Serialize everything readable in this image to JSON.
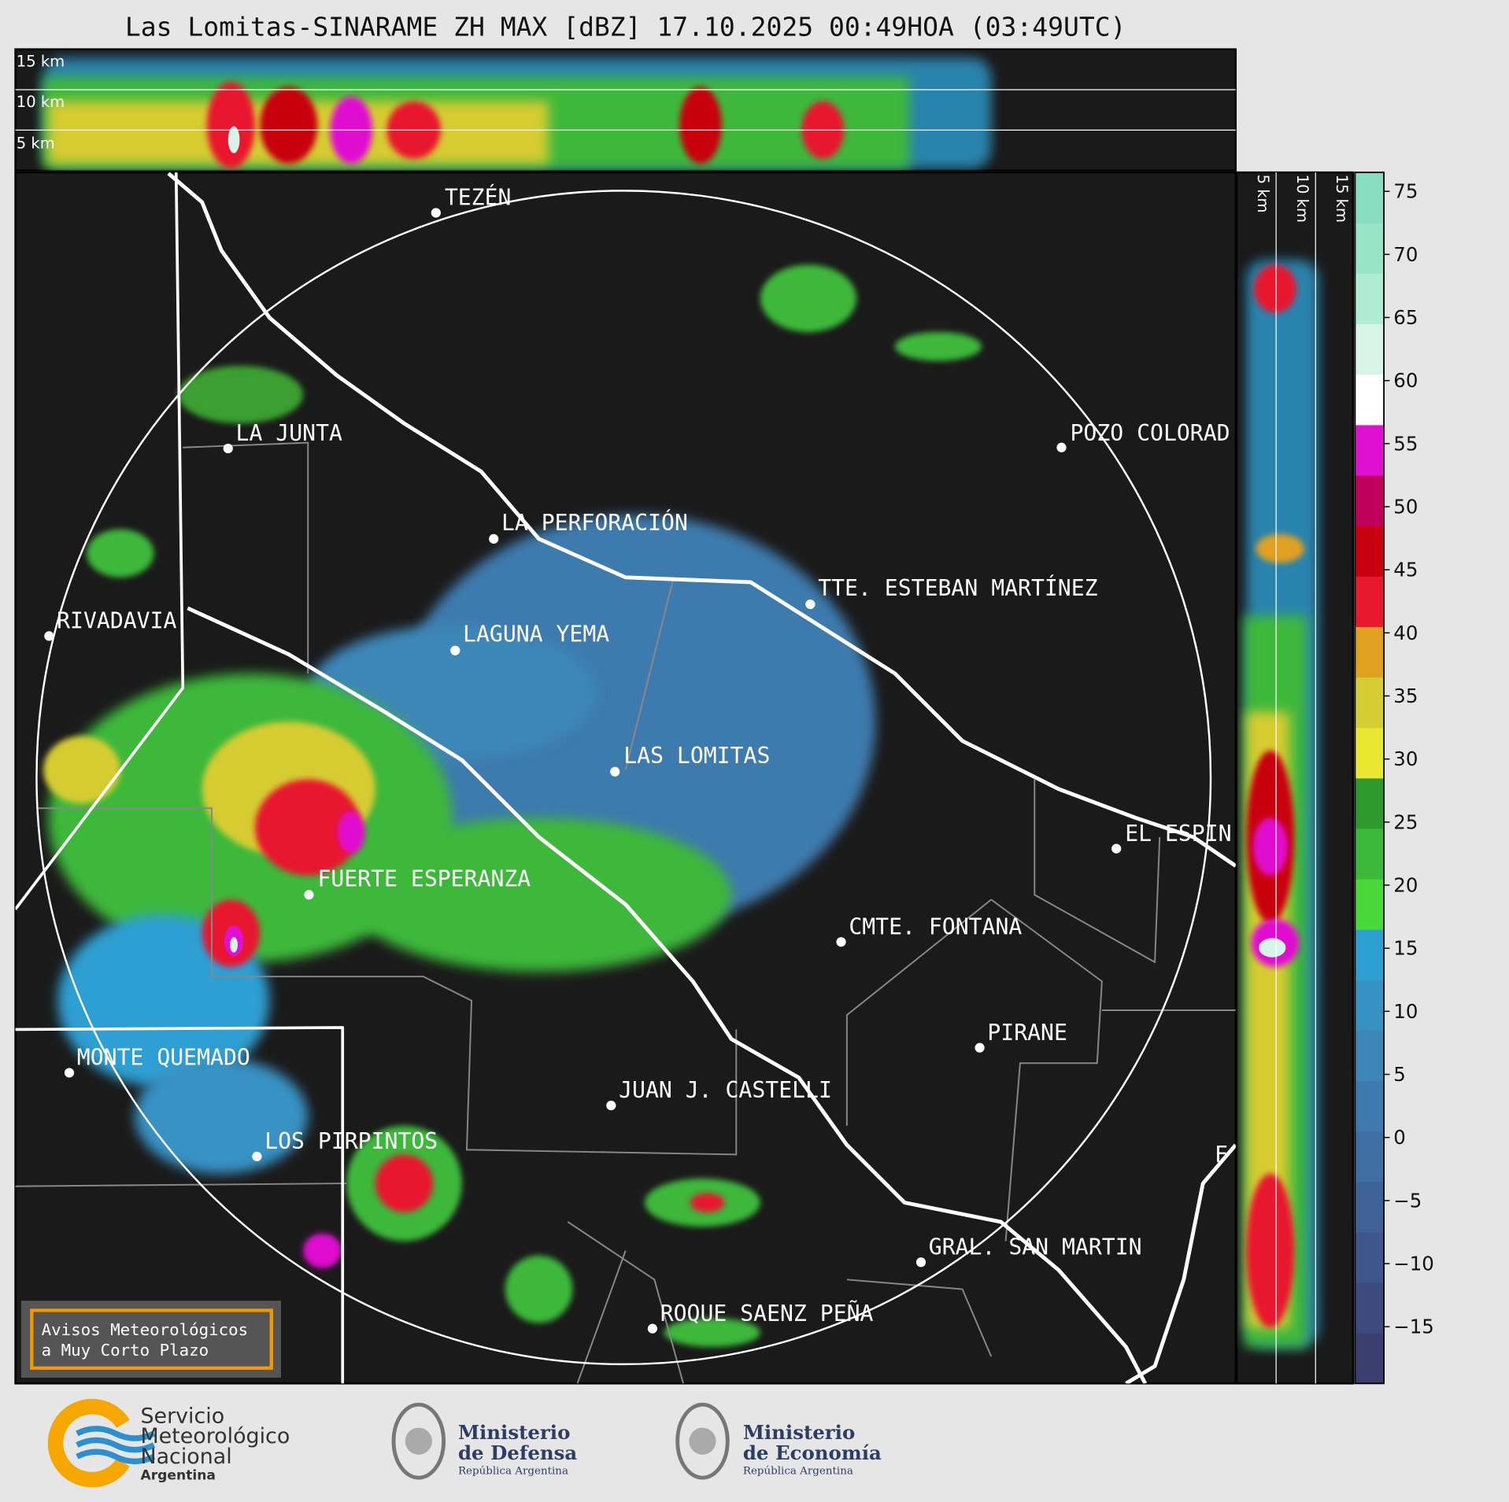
{
  "title": "Las Lomitas-SINARAME ZH MAX [dBZ] 17.10.2025 00:49HOA (03:49UTC)",
  "top_panel_heights": [
    "15 km",
    "10 km",
    "5 km"
  ],
  "side_panel_heights": [
    "5 km",
    "10 km",
    "15 km"
  ],
  "places": [
    "TEZÉN",
    "LA JUNTA",
    "POZO COLORAD",
    "LA PERFORACIÓN",
    "TTE. ESTEBAN MARTÍNEZ",
    "RIVADAVIA",
    "LAGUNA YEMA",
    "LAS LOMITAS",
    "EL ESPIN",
    "FUERTE ESPERANZA",
    "CMTE. FONTANA",
    "PIRANE",
    "MONTE QUEMADO",
    "JUAN J. CASTELLI",
    "LOS PIRPINTOS",
    "F",
    "GRAL. SAN MARTIN",
    "ROQUE SAENZ PEÑA"
  ],
  "colorbar": {
    "range": [
      -19.5,
      76.5
    ],
    "ticks": [
      {
        "value": -15,
        "label": "−15"
      },
      {
        "value": -10,
        "label": "−10"
      },
      {
        "value": -5,
        "label": "−5"
      },
      0,
      5,
      10,
      15,
      20,
      25,
      30,
      35,
      40,
      45,
      50,
      55,
      60,
      65,
      70,
      75
    ],
    "colors": [
      "#3b3f70",
      "#3d4a7e",
      "#3e568b",
      "#3f6296",
      "#3f6ea2",
      "#3e7aad",
      "#3c86b8",
      "#3792c4",
      "#2e9fd2",
      "#49d83a",
      "#3cb83a",
      "#2e9a2e",
      "#e8e62e",
      "#d6cc33",
      "#e0a020",
      "#e8182e",
      "#c80010",
      "#c0005a",
      "#e010d0",
      "#ffffff",
      "#d8f4e8",
      "#b0ecd4",
      "#98e4c8",
      "#88dcc0"
    ]
  },
  "notice": [
    "Avisos Meteorológicos",
    "a Muy Corto Plazo"
  ],
  "logos": [
    {
      "lines": [
        "Servicio",
        "Meteorológico",
        "Nacional",
        "Argentina"
      ]
    },
    {
      "lines": [
        "Ministerio",
        "de Defensa",
        "República Argentina"
      ]
    },
    {
      "lines": [
        "Ministerio",
        "de Economía",
        "República Argentina"
      ]
    }
  ]
}
